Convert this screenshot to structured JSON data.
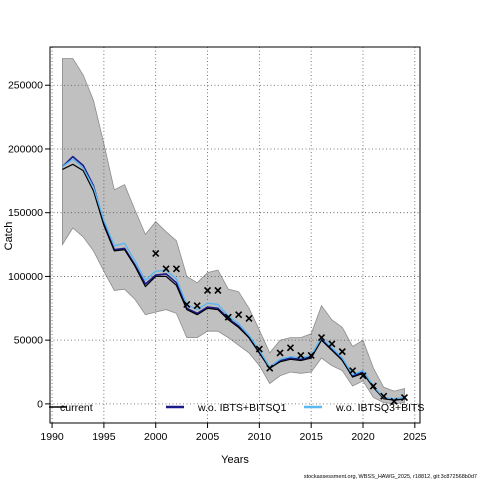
{
  "chart_data": {
    "type": "line",
    "title": "",
    "xlabel": "Years",
    "ylabel": "Catch",
    "xlim": [
      1989.8,
      2025.5
    ],
    "ylim": [
      -15000,
      280000
    ],
    "x_ticks": [
      1990,
      1995,
      2000,
      2005,
      2010,
      2015,
      2020,
      2025
    ],
    "x_tick_labels": [
      "1990",
      "1995",
      "2000",
      "2005",
      "2010",
      "2015",
      "2020",
      "2025"
    ],
    "y_ticks": [
      0,
      50000,
      100000,
      150000,
      200000,
      250000
    ],
    "y_tick_labels": [
      "0",
      "50000",
      "100000",
      "150000",
      "200000",
      "250000"
    ],
    "grid": true,
    "legend_position": "bottom",
    "years": [
      1991,
      1992,
      1993,
      1994,
      1995,
      1996,
      1997,
      1998,
      1999,
      2000,
      2001,
      2002,
      2003,
      2004,
      2005,
      2006,
      2007,
      2008,
      2009,
      2010,
      2011,
      2012,
      2013,
      2014,
      2015,
      2016,
      2017,
      2018,
      2019,
      2020,
      2021,
      2022,
      2023,
      2024
    ],
    "band": {
      "upper": [
        271000,
        271000,
        258000,
        238000,
        204000,
        168000,
        172000,
        152000,
        133000,
        143000,
        135000,
        128000,
        100000,
        95000,
        103000,
        105000,
        90000,
        88000,
        75000,
        58000,
        40000,
        50000,
        52000,
        52000,
        55000,
        77000,
        66000,
        60000,
        45000,
        50000,
        28000,
        13000,
        10000,
        12000
      ],
      "lower": [
        125000,
        138000,
        131000,
        120000,
        104000,
        89000,
        90000,
        82000,
        70000,
        72000,
        74000,
        71000,
        52000,
        52000,
        57000,
        57000,
        52000,
        46000,
        40000,
        30000,
        16000,
        22000,
        25000,
        24000,
        25000,
        36000,
        30000,
        26000,
        14000,
        18000,
        5000,
        1000,
        0,
        1000
      ]
    },
    "series": [
      {
        "name": "current",
        "color": "#000000",
        "values": [
          184000,
          188000,
          183000,
          167000,
          140000,
          120000,
          121000,
          108000,
          92000,
          100000,
          100000,
          93000,
          74000,
          70000,
          75000,
          74000,
          66000,
          60000,
          52000,
          40000,
          28000,
          33000,
          35000,
          34000,
          36000,
          50000,
          42000,
          34000,
          21000,
          24000,
          13000,
          4000,
          3000,
          4000
        ]
      },
      {
        "name": "w.o. IBTS+BITSQ1",
        "color": "#1a1a8c",
        "values": [
          186000,
          194000,
          187000,
          171000,
          142000,
          121000,
          122000,
          109000,
          94000,
          101000,
          102000,
          95000,
          75000,
          71000,
          76000,
          75000,
          67000,
          61000,
          52000,
          40000,
          28000,
          34000,
          36000,
          35000,
          37000,
          51000,
          43000,
          35000,
          22000,
          25000,
          13000,
          5000,
          3000,
          4000
        ]
      },
      {
        "name": "w.o. IBTSQ3+BITS",
        "color": "#5bb8f0",
        "values": [
          186000,
          192000,
          185000,
          170000,
          144000,
          124000,
          126000,
          112000,
          97000,
          104000,
          105000,
          98000,
          78000,
          74000,
          79000,
          78000,
          69000,
          63000,
          54000,
          42000,
          29000,
          35000,
          37000,
          36000,
          38000,
          52000,
          44000,
          36000,
          23000,
          26000,
          14000,
          5000,
          4000,
          5000
        ]
      }
    ],
    "observed": {
      "marker": "x",
      "x": [
        2000,
        2001,
        2002,
        2003,
        2004,
        2005,
        2006,
        2007,
        2008,
        2009,
        2010,
        2011,
        2012,
        2013,
        2014,
        2015,
        2016,
        2017,
        2018,
        2019,
        2020,
        2021,
        2022,
        2023,
        2024
      ],
      "y": [
        118000,
        106000,
        106000,
        78000,
        77000,
        89000,
        89000,
        68000,
        70000,
        67000,
        43000,
        28000,
        40000,
        44000,
        38000,
        38000,
        52000,
        47000,
        41000,
        26000,
        22000,
        14000,
        6000,
        2000,
        5000
      ]
    },
    "legend": [
      {
        "label": "current",
        "color": "#000000"
      },
      {
        "label": "w.o. IBTS+BITSQ1",
        "color": "#1a1a8c"
      },
      {
        "label": "w.o. IBTSQ3+BITS",
        "color": "#5bb8f0"
      }
    ]
  },
  "footer": "stockassessment.org, WBSS_HAWG_2025, r18812, git:3c872568b0d7"
}
